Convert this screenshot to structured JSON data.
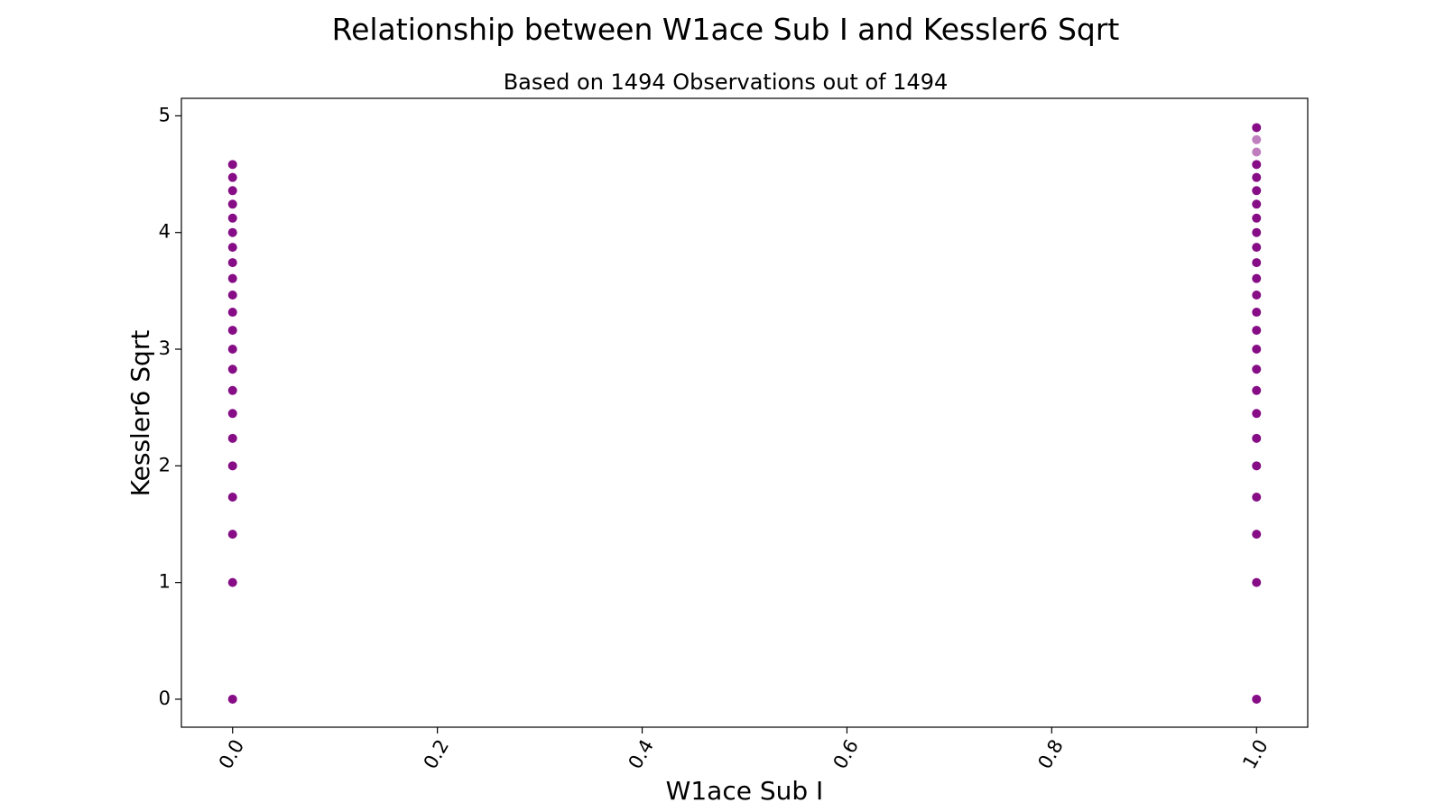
{
  "chart_data": {
    "type": "scatter",
    "title": "Relationship between W1ace Sub I and Kessler6 Sqrt",
    "subtitle": "Based on 1494 Observations out of 1494",
    "xlabel": "W1ace Sub I",
    "ylabel": "Kessler6 Sqrt",
    "xlim": [
      -0.05,
      1.05
    ],
    "ylim": [
      -0.24,
      5.15
    ],
    "x_ticks": [
      0.0,
      0.2,
      0.4,
      0.6,
      0.8,
      1.0
    ],
    "x_tick_labels": [
      "0.0",
      "0.2",
      "0.4",
      "0.6",
      "0.8",
      "1.0"
    ],
    "y_ticks": [
      0,
      1,
      2,
      3,
      4,
      5
    ],
    "y_tick_labels": [
      "0",
      "1",
      "2",
      "3",
      "4",
      "5"
    ],
    "grid": false,
    "legend": "none",
    "marker_color": "#800080",
    "series": [
      {
        "x_value": 0.0,
        "y": [
          0,
          1,
          1.414,
          1.732,
          2,
          2.236,
          2.449,
          2.646,
          2.828,
          3,
          3.162,
          3.317,
          3.464,
          3.606,
          3.742,
          3.873,
          4,
          4.123,
          4.243,
          4.359,
          4.472,
          4.583
        ]
      },
      {
        "x_value": 1.0,
        "y": [
          0,
          1,
          1.414,
          1.732,
          2,
          2.236,
          2.449,
          2.646,
          2.828,
          3,
          3.162,
          3.317,
          3.464,
          3.606,
          3.742,
          3.873,
          4,
          4.123,
          4.243,
          4.359,
          4.472,
          4.583,
          4.69,
          4.796,
          4.899
        ]
      }
    ]
  }
}
